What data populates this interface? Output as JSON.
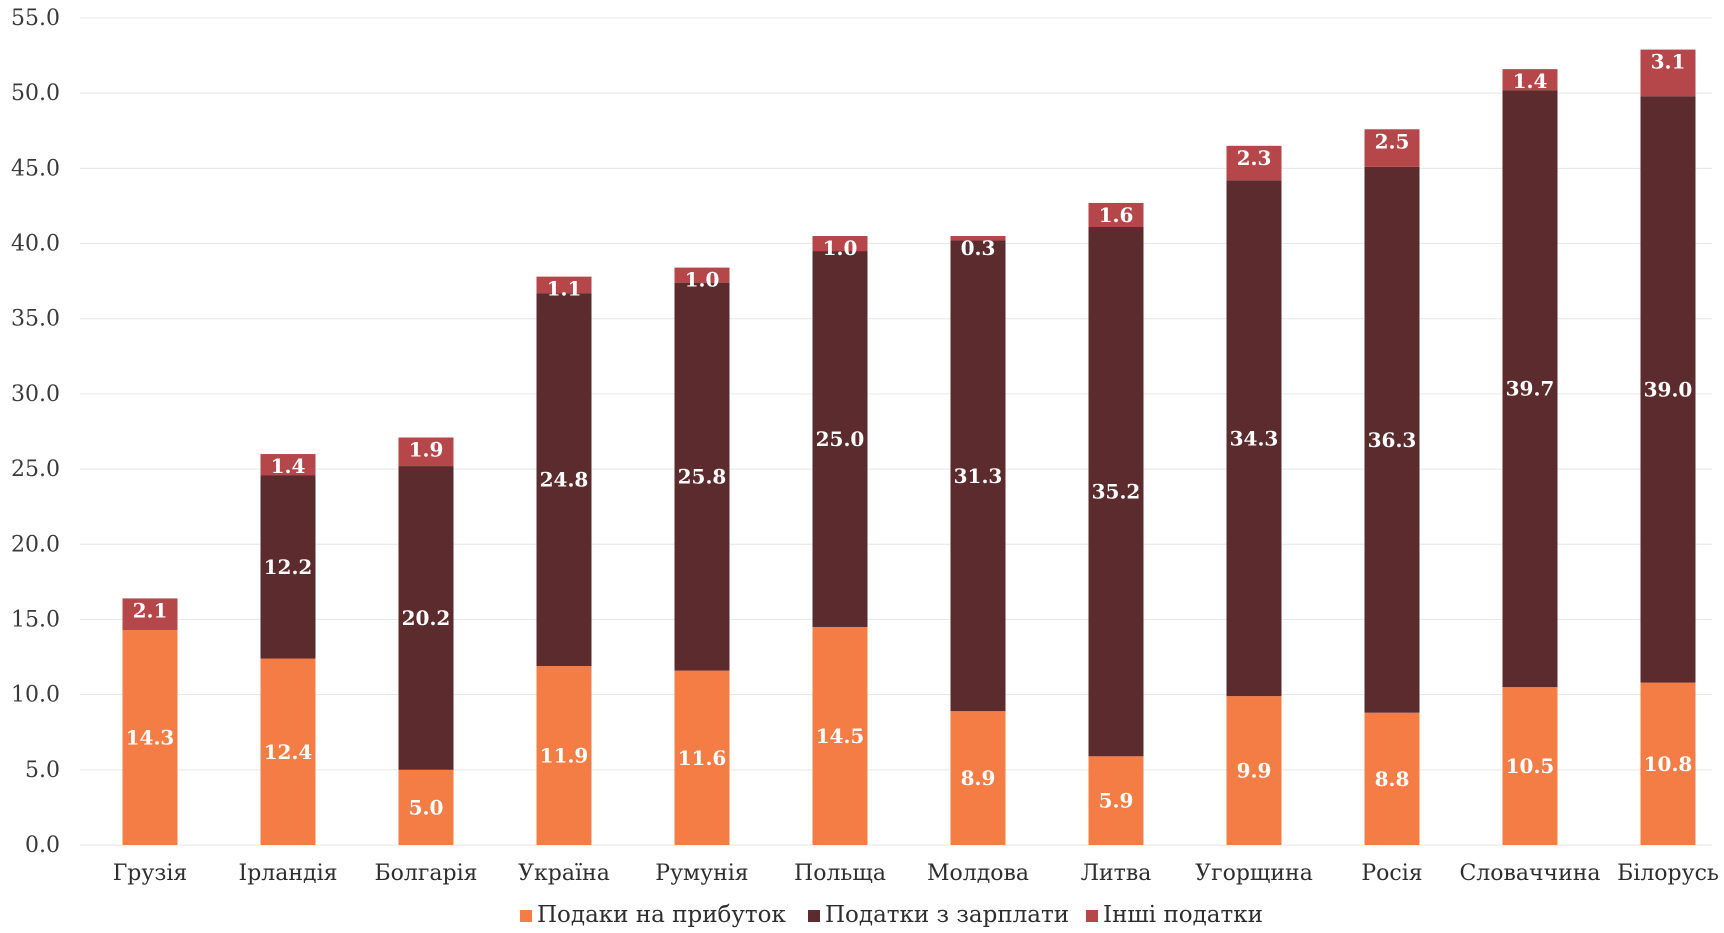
{
  "chart_data": {
    "type": "bar",
    "stacked": true,
    "categories": [
      "Грузія",
      "Ірландія",
      "Болгарія",
      "Україна",
      "Румунія",
      "Польща",
      "Молдова",
      "Литва",
      "Угорщина",
      "Росія",
      "Словаччина",
      "Білорусь"
    ],
    "series": [
      {
        "name": "Подаки на прибуток",
        "color": "#f47c45",
        "values": [
          14.3,
          12.4,
          5.0,
          11.9,
          11.6,
          14.5,
          8.9,
          5.9,
          9.9,
          8.8,
          10.5,
          10.8
        ]
      },
      {
        "name": "Податки з зарплати",
        "color": "#5b2b2d",
        "values": [
          0,
          12.2,
          20.2,
          24.8,
          25.8,
          25.0,
          31.3,
          35.2,
          34.3,
          36.3,
          39.7,
          39.0
        ]
      },
      {
        "name": "Інші податки",
        "color": "#b5464a",
        "values": [
          2.1,
          1.4,
          1.9,
          1.1,
          1.0,
          1.0,
          0.3,
          1.6,
          2.3,
          2.5,
          1.4,
          3.1
        ]
      }
    ],
    "ylim": [
      0,
      55
    ],
    "yticks": [
      "0.0",
      "5.0",
      "10.0",
      "15.0",
      "20.0",
      "25.0",
      "30.0",
      "35.0",
      "40.0",
      "45.0",
      "50.0",
      "55.0"
    ],
    "grid": true,
    "legend_position": "bottom"
  }
}
